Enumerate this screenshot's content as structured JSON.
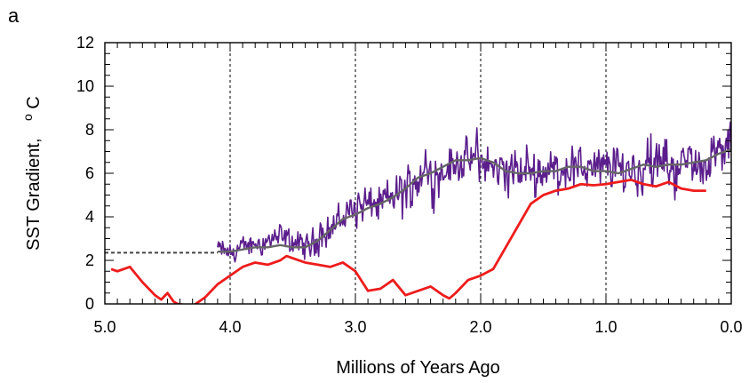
{
  "panel_label": "a",
  "chart_data": {
    "type": "line",
    "xlabel": "Millions of Years Ago",
    "ylabel": "SST Gradient,",
    "ylabel_unit_sup": "o",
    "ylabel_unit": "C",
    "xlim": [
      5.0,
      0.0
    ],
    "ylim": [
      0,
      12
    ],
    "x_reversed": true,
    "x_ticks": [
      5.0,
      4.0,
      3.0,
      2.0,
      1.0,
      0.0
    ],
    "x_tick_labels": [
      "5.0",
      "4.0",
      "3.0",
      "2.0",
      "1.0",
      "0.0"
    ],
    "y_ticks": [
      0,
      2,
      4,
      6,
      8,
      10,
      12
    ],
    "y_tick_labels": [
      "0",
      "2",
      "4",
      "6",
      "8",
      "10",
      "12"
    ],
    "vertical_gridlines_at": [
      4.0,
      3.0,
      2.0,
      1.0
    ],
    "series": [
      {
        "color": "#5b1e8c",
        "style": "noisy-proxy",
        "x_range": [
          4.1,
          0.0
        ],
        "envelope": {
          "x": [
            4.1,
            4.0,
            3.8,
            3.6,
            3.4,
            3.2,
            3.0,
            2.8,
            2.6,
            2.4,
            2.2,
            2.0,
            1.8,
            1.6,
            1.4,
            1.2,
            1.0,
            0.8,
            0.6,
            0.4,
            0.2,
            0.0
          ],
          "center": [
            2.6,
            2.3,
            2.8,
            3.1,
            2.6,
            3.5,
            4.4,
            4.6,
            5.3,
            6.0,
            6.5,
            6.6,
            6.0,
            6.1,
            6.2,
            6.3,
            6.2,
            6.2,
            6.4,
            6.3,
            6.6,
            7.3
          ],
          "amplitude": [
            0.5,
            0.7,
            0.8,
            0.9,
            0.9,
            1.1,
            1.3,
            1.4,
            1.6,
            1.6,
            1.6,
            1.5,
            1.5,
            1.5,
            1.5,
            1.6,
            1.6,
            1.7,
            1.7,
            1.7,
            1.6,
            1.5
          ]
        }
      },
      {
        "color": "#666666",
        "style": "smoothed",
        "x": [
          4.1,
          4.0,
          3.9,
          3.8,
          3.7,
          3.6,
          3.5,
          3.4,
          3.3,
          3.2,
          3.1,
          3.0,
          2.9,
          2.8,
          2.7,
          2.6,
          2.5,
          2.4,
          2.3,
          2.2,
          2.1,
          2.0,
          1.9,
          1.8,
          1.7,
          1.6,
          1.5,
          1.4,
          1.3,
          1.2,
          1.1,
          1.0,
          0.9,
          0.8,
          0.7,
          0.6,
          0.5,
          0.4,
          0.3,
          0.2,
          0.1,
          0.0
        ],
        "y": [
          2.4,
          2.4,
          2.5,
          2.6,
          2.6,
          2.7,
          2.6,
          2.6,
          2.9,
          3.4,
          3.9,
          4.1,
          4.4,
          4.6,
          4.9,
          5.3,
          5.8,
          6.0,
          6.3,
          6.6,
          6.6,
          6.7,
          6.5,
          6.1,
          6.0,
          6.0,
          6.1,
          6.1,
          6.3,
          6.3,
          6.1,
          6.1,
          6.0,
          6.2,
          6.4,
          6.3,
          6.4,
          6.4,
          6.5,
          6.6,
          6.9,
          7.1
        ]
      },
      {
        "color": "#444444",
        "style": "dashed",
        "x": [
          5.0,
          4.1
        ],
        "y": [
          2.35,
          2.35
        ]
      },
      {
        "color": "#ee1c1c",
        "style": "solid",
        "x": [
          4.95,
          4.9,
          4.8,
          4.7,
          4.6,
          4.55,
          4.5,
          4.45,
          4.42,
          4.3,
          4.2,
          4.1,
          4.0,
          3.9,
          3.8,
          3.7,
          3.6,
          3.55,
          3.5,
          3.4,
          3.3,
          3.2,
          3.1,
          3.0,
          2.9,
          2.8,
          2.7,
          2.6,
          2.5,
          2.4,
          2.3,
          2.25,
          2.2,
          2.1,
          2.0,
          1.9,
          1.8,
          1.7,
          1.6,
          1.5,
          1.4,
          1.3,
          1.2,
          1.1,
          1.0,
          0.9,
          0.8,
          0.7,
          0.6,
          0.5,
          0.4,
          0.3,
          0.2
        ],
        "y": [
          1.6,
          1.5,
          1.7,
          1.0,
          0.4,
          0.2,
          0.5,
          0.1,
          0.0,
          -0.1,
          0.3,
          0.9,
          1.3,
          1.7,
          1.9,
          1.8,
          2.0,
          2.2,
          2.1,
          1.9,
          1.8,
          1.7,
          1.9,
          1.5,
          0.6,
          0.7,
          1.1,
          0.4,
          0.6,
          0.8,
          0.4,
          0.25,
          0.5,
          1.1,
          1.3,
          1.6,
          2.6,
          3.6,
          4.6,
          5.0,
          5.2,
          5.3,
          5.5,
          5.45,
          5.5,
          5.6,
          5.7,
          5.5,
          5.4,
          5.6,
          5.3,
          5.2,
          5.2
        ]
      }
    ]
  }
}
